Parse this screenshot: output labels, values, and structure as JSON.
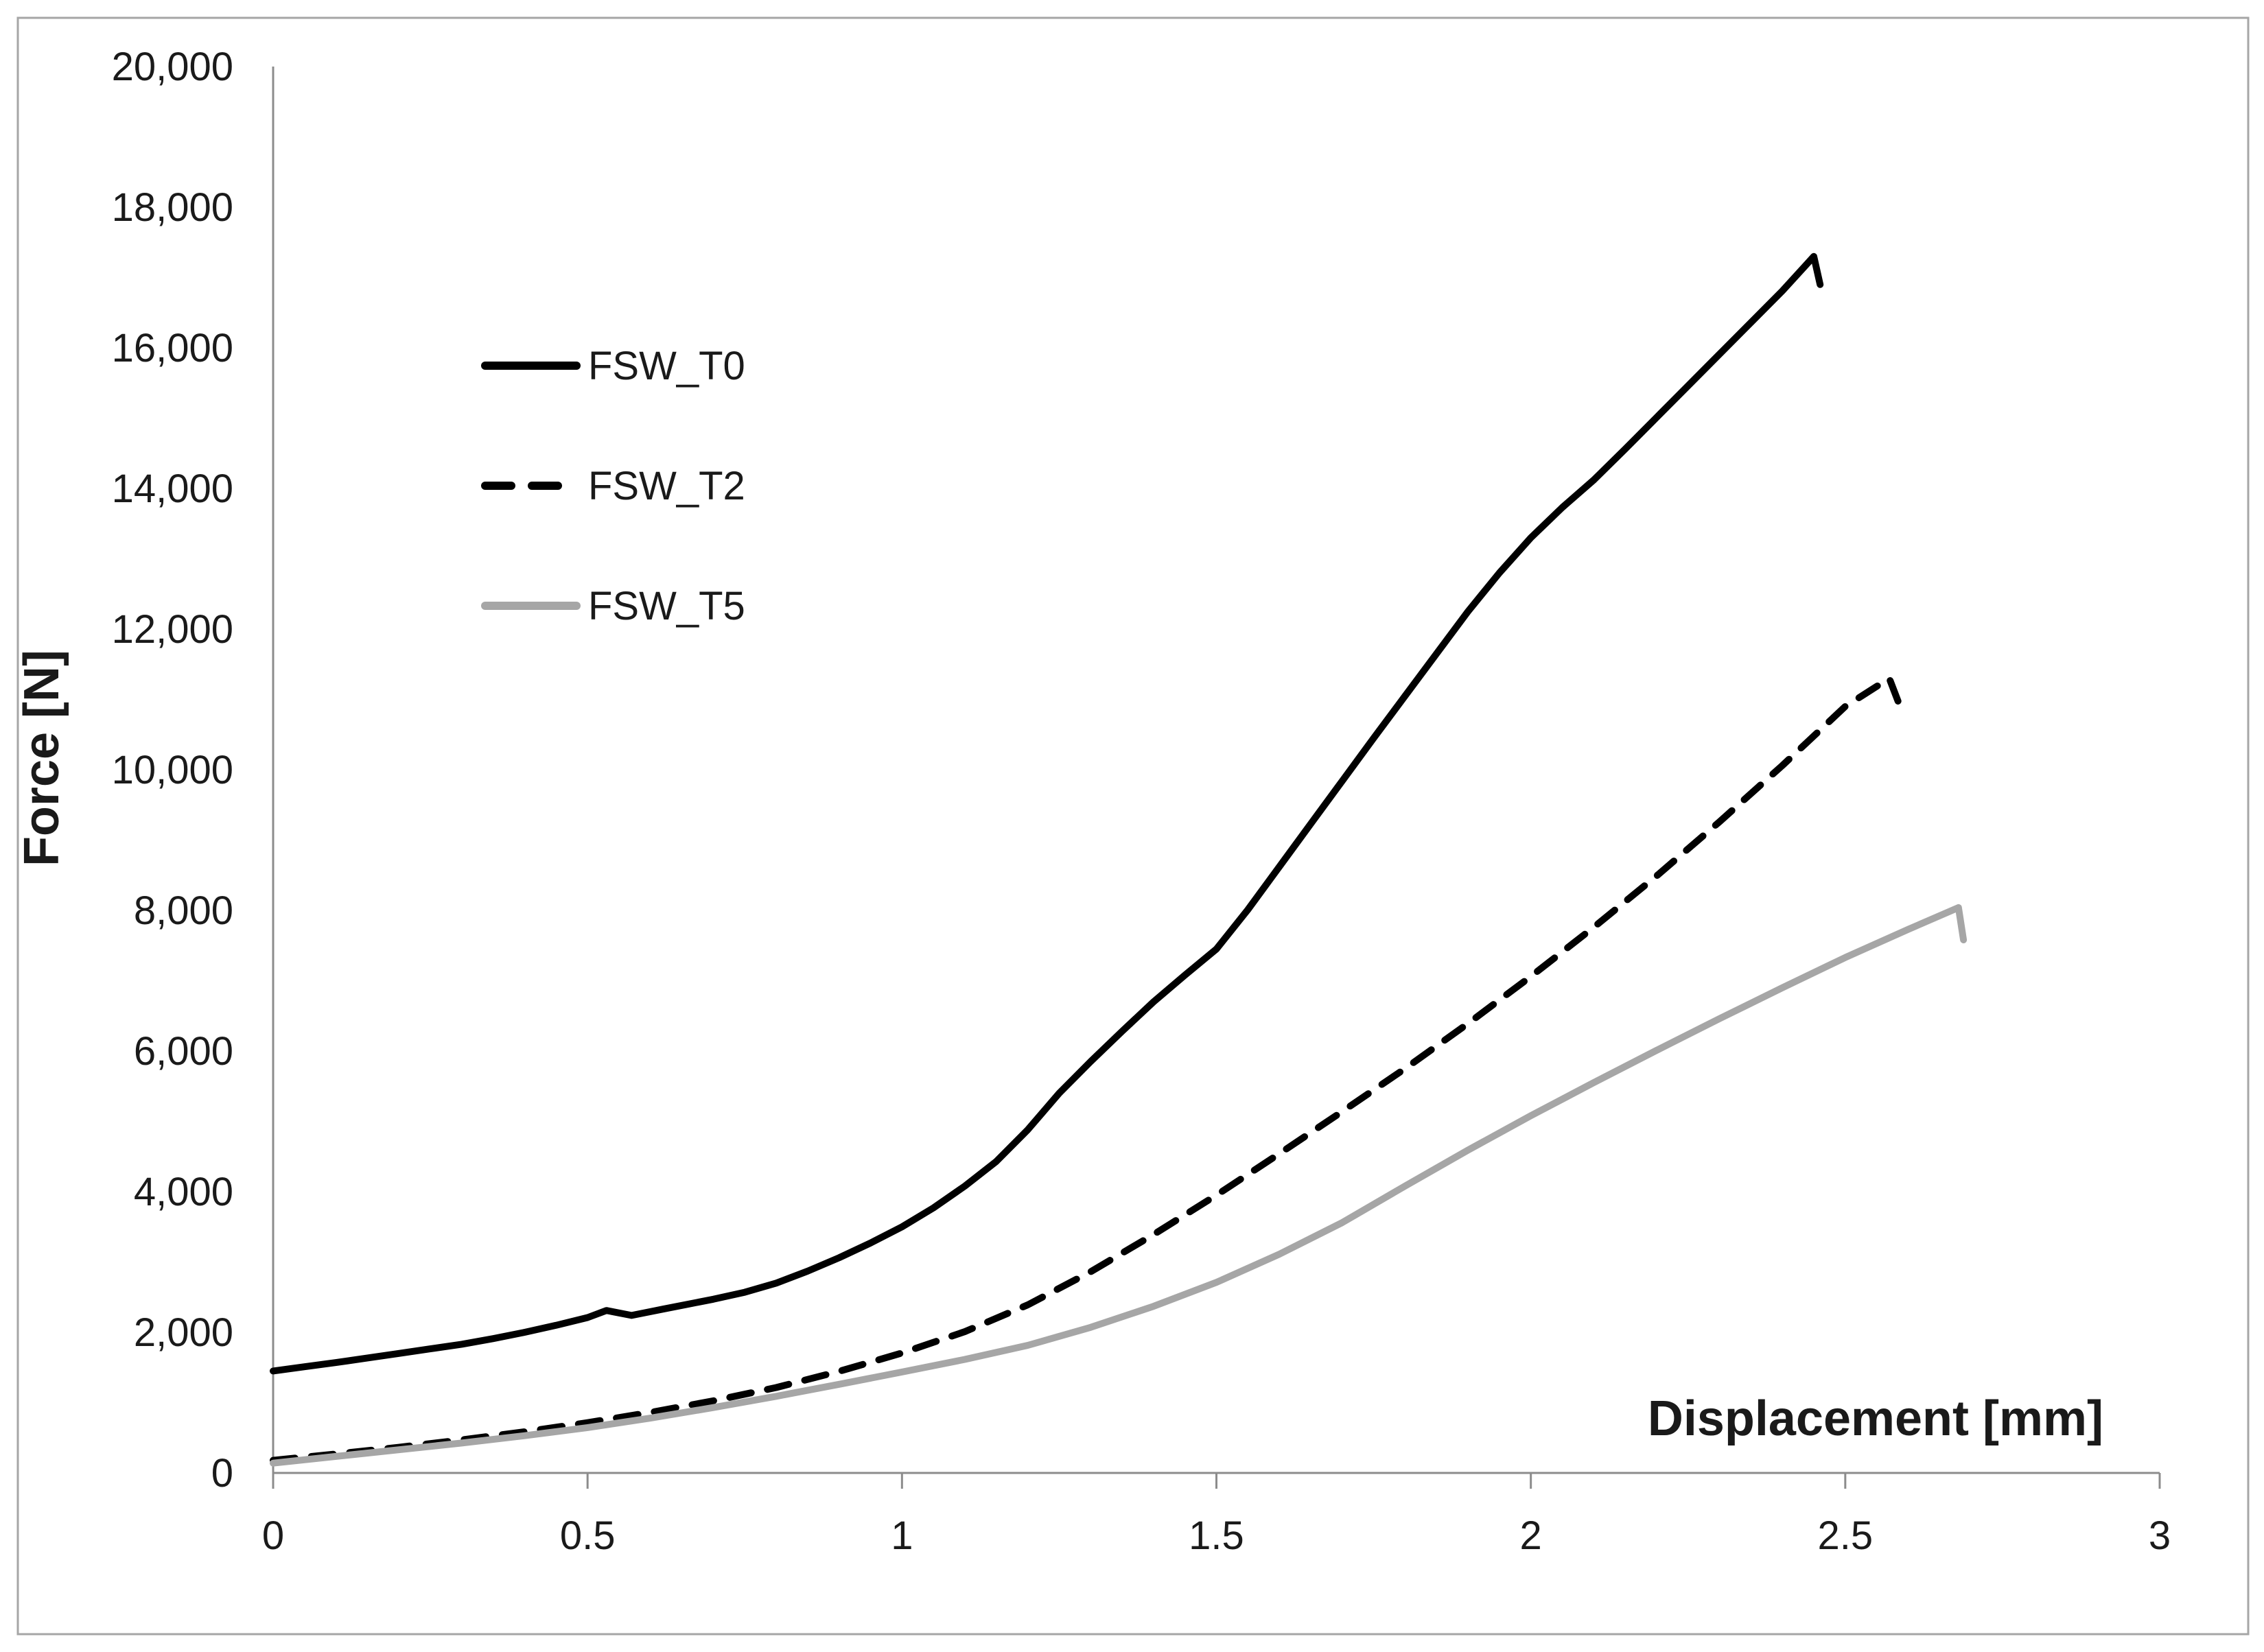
{
  "figure": {
    "background": "#ffffff",
    "frame_color": "#a6a6a6",
    "axis_color": "#8c8c8c",
    "text_color": "#1a1a1a"
  },
  "legend": {
    "items": [
      {
        "label": "FSW_T0",
        "color": "#000000",
        "style": "solid"
      },
      {
        "label": "FSW_T2",
        "color": "#000000",
        "style": "dashed"
      },
      {
        "label": "FSW_T5",
        "color": "#a6a6a6",
        "style": "solid"
      }
    ]
  },
  "chart_data": {
    "type": "line",
    "title": "",
    "xlabel": "Displacement [mm]",
    "ylabel": "Force [N]",
    "xlim": [
      0,
      3
    ],
    "ylim": [
      0,
      20000
    ],
    "grid": false,
    "legend_position": "upper-left-inside",
    "x_ticks": [
      0,
      0.5,
      1,
      1.5,
      2,
      2.5,
      3
    ],
    "x_tick_labels": [
      "0",
      "0.5",
      "1",
      "1.5",
      "2",
      "2.5",
      "3"
    ],
    "y_ticks": [
      0,
      2000,
      4000,
      6000,
      8000,
      10000,
      12000,
      14000,
      16000,
      18000,
      20000
    ],
    "y_tick_labels": [
      "0",
      "2,000",
      "4,000",
      "6,000",
      "8,000",
      "10,000",
      "12,000",
      "14,000",
      "16,000",
      "18,000",
      "20,000"
    ],
    "series": [
      {
        "name": "FSW_T0",
        "color": "#000000",
        "style": "solid",
        "points": [
          [
            0,
            1450
          ],
          [
            0.05,
            1510
          ],
          [
            0.1,
            1570
          ],
          [
            0.15,
            1635
          ],
          [
            0.2,
            1700
          ],
          [
            0.25,
            1765
          ],
          [
            0.3,
            1830
          ],
          [
            0.35,
            1910
          ],
          [
            0.4,
            2000
          ],
          [
            0.45,
            2100
          ],
          [
            0.5,
            2210
          ],
          [
            0.53,
            2310
          ],
          [
            0.57,
            2240
          ],
          [
            0.62,
            2330
          ],
          [
            0.7,
            2470
          ],
          [
            0.75,
            2570
          ],
          [
            0.8,
            2700
          ],
          [
            0.85,
            2870
          ],
          [
            0.9,
            3060
          ],
          [
            0.95,
            3270
          ],
          [
            1.0,
            3500
          ],
          [
            1.05,
            3770
          ],
          [
            1.1,
            4080
          ],
          [
            1.15,
            4430
          ],
          [
            1.2,
            4880
          ],
          [
            1.25,
            5400
          ],
          [
            1.3,
            5850
          ],
          [
            1.35,
            6280
          ],
          [
            1.4,
            6700
          ],
          [
            1.45,
            7080
          ],
          [
            1.5,
            7450
          ],
          [
            1.55,
            8010
          ],
          [
            1.6,
            8620
          ],
          [
            1.65,
            9230
          ],
          [
            1.7,
            9840
          ],
          [
            1.75,
            10450
          ],
          [
            1.8,
            11050
          ],
          [
            1.85,
            11650
          ],
          [
            1.9,
            12250
          ],
          [
            1.95,
            12800
          ],
          [
            2.0,
            13300
          ],
          [
            2.05,
            13730
          ],
          [
            2.1,
            14120
          ],
          [
            2.15,
            14560
          ],
          [
            2.2,
            15010
          ],
          [
            2.25,
            15460
          ],
          [
            2.3,
            15910
          ],
          [
            2.35,
            16360
          ],
          [
            2.4,
            16810
          ],
          [
            2.45,
            17300
          ],
          [
            2.46,
            16900
          ]
        ]
      },
      {
        "name": "FSW_T2",
        "color": "#000000",
        "style": "dashed",
        "points": [
          [
            0,
            180
          ],
          [
            0.1,
            270
          ],
          [
            0.2,
            365
          ],
          [
            0.3,
            470
          ],
          [
            0.4,
            585
          ],
          [
            0.5,
            715
          ],
          [
            0.6,
            860
          ],
          [
            0.7,
            1025
          ],
          [
            0.8,
            1215
          ],
          [
            0.9,
            1445
          ],
          [
            1.0,
            1705
          ],
          [
            1.1,
            2010
          ],
          [
            1.2,
            2390
          ],
          [
            1.3,
            2860
          ],
          [
            1.4,
            3390
          ],
          [
            1.5,
            3950
          ],
          [
            1.6,
            4540
          ],
          [
            1.7,
            5140
          ],
          [
            1.8,
            5750
          ],
          [
            1.9,
            6390
          ],
          [
            2.0,
            7060
          ],
          [
            2.1,
            7760
          ],
          [
            2.2,
            8490
          ],
          [
            2.3,
            9260
          ],
          [
            2.4,
            10060
          ],
          [
            2.5,
            10900
          ],
          [
            2.57,
            11300
          ],
          [
            2.585,
            10950
          ]
        ]
      },
      {
        "name": "FSW_T5",
        "color": "#a6a6a6",
        "style": "solid",
        "points": [
          [
            0,
            140
          ],
          [
            0.1,
            235
          ],
          [
            0.2,
            330
          ],
          [
            0.3,
            425
          ],
          [
            0.4,
            530
          ],
          [
            0.5,
            645
          ],
          [
            0.6,
            780
          ],
          [
            0.7,
            930
          ],
          [
            0.8,
            1090
          ],
          [
            0.9,
            1260
          ],
          [
            1.0,
            1435
          ],
          [
            1.1,
            1615
          ],
          [
            1.2,
            1815
          ],
          [
            1.3,
            2070
          ],
          [
            1.4,
            2370
          ],
          [
            1.5,
            2710
          ],
          [
            1.6,
            3110
          ],
          [
            1.7,
            3560
          ],
          [
            1.8,
            4080
          ],
          [
            1.9,
            4590
          ],
          [
            2.0,
            5080
          ],
          [
            2.1,
            5550
          ],
          [
            2.2,
            6010
          ],
          [
            2.3,
            6460
          ],
          [
            2.4,
            6900
          ],
          [
            2.5,
            7330
          ],
          [
            2.6,
            7730
          ],
          [
            2.68,
            8040
          ],
          [
            2.688,
            7580
          ]
        ]
      }
    ]
  }
}
